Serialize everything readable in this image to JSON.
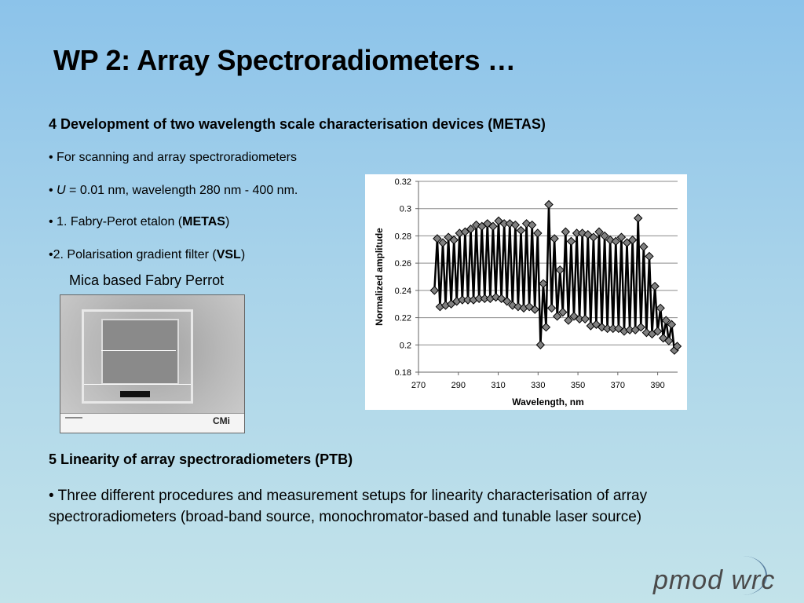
{
  "slide": {
    "title": "WP 2: Array Spectroradiometers …",
    "section4_heading": "4 Development of two wavelength scale characterisation devices (METAS)",
    "bullets": [
      "• For scanning and array spectroradiometers",
      "• U = 0.01 nm, wavelength 280 nm - 400 nm.",
      "• 1. Fabry-Perot etalon (METAS)",
      "•2. Polarisation  gradient  filter (VSL)"
    ],
    "bullet2_parts": {
      "pre": "• ",
      "italic": "U",
      "post": " = 0.01 nm, wavelength 280 nm - 400 nm."
    },
    "bullet3_parts": {
      "pre": "• 1. Fabry-Perot etalon (",
      "bold": "METAS",
      "post": ")"
    },
    "bullet4_parts": {
      "pre": "•2. Polarisation  gradient  filter (",
      "bold": "VSL",
      "post": ")"
    },
    "image_caption": "Mica based Fabry Perrot",
    "image_logo": "CMi",
    "section5_heading": "5 Linearity of array spectroradiometers  (PTB)",
    "section5_text": "• Three different procedures and measurement setups for linearity characterisation of array spectroradiometers (broad-band source, monochromator-based and tunable laser source)",
    "logo_text": "pmod wrc",
    "colors": {
      "marker_fill": "#808080",
      "line": "#000000",
      "background_top": "#8cc3ea",
      "background_bottom": "#c3e3ea"
    }
  },
  "chart_data": {
    "type": "line",
    "xlabel": "Wavelength, nm",
    "ylabel": "Normalized amplitude",
    "xlim": [
      270,
      400
    ],
    "ylim": [
      0.18,
      0.32
    ],
    "xticks": [
      270,
      290,
      310,
      330,
      350,
      370,
      390
    ],
    "yticks": [
      0.18,
      0.2,
      0.22,
      0.24,
      0.26,
      0.28,
      0.3,
      0.32
    ],
    "grid": "horizontal",
    "marker": "diamond",
    "series": [
      {
        "x": [
          278,
          279.4,
          280.8,
          282.2,
          283.6,
          285,
          286.4,
          287.8,
          289.2,
          290.6,
          292,
          293.4,
          294.8,
          296.2,
          297.6,
          299,
          300.4,
          301.8,
          303.2,
          304.6,
          306,
          307.4,
          308.8,
          310.2,
          311.6,
          313,
          314.4,
          315.8,
          317.2,
          318.6,
          320,
          321.4,
          322.8,
          324.2,
          325.6,
          327,
          328.4,
          329.8,
          331.2,
          332.6,
          334,
          335.4,
          336.8,
          338.2,
          339.6,
          341,
          342.4,
          343.8,
          345.2,
          346.6,
          348,
          349.4,
          350.8,
          352.2,
          353.6,
          355,
          356.4,
          357.8,
          359.2,
          360.6,
          362,
          363.4,
          364.8,
          366.2,
          367.6,
          369,
          370.4,
          371.8,
          373.2,
          374.6,
          376,
          377.4,
          378.8,
          380.2,
          381.6,
          383,
          384.4,
          385.8,
          387.2,
          388.6,
          390,
          391.4,
          392.8,
          394.2,
          395.6,
          397,
          398.4,
          399.8
        ],
        "y": [
          0.24,
          0.278,
          0.228,
          0.275,
          0.229,
          0.279,
          0.23,
          0.277,
          0.232,
          0.282,
          0.233,
          0.283,
          0.233,
          0.285,
          0.233,
          0.288,
          0.234,
          0.287,
          0.234,
          0.289,
          0.234,
          0.287,
          0.235,
          0.291,
          0.234,
          0.289,
          0.232,
          0.289,
          0.229,
          0.288,
          0.228,
          0.284,
          0.227,
          0.289,
          0.228,
          0.288,
          0.226,
          0.282,
          0.2,
          0.245,
          0.213,
          0.303,
          0.227,
          0.278,
          0.221,
          0.255,
          0.224,
          0.283,
          0.218,
          0.276,
          0.221,
          0.282,
          0.219,
          0.282,
          0.219,
          0.281,
          0.214,
          0.279,
          0.215,
          0.283,
          0.213,
          0.28,
          0.212,
          0.277,
          0.212,
          0.276,
          0.212,
          0.279,
          0.21,
          0.275,
          0.211,
          0.277,
          0.211,
          0.293,
          0.213,
          0.272,
          0.209,
          0.265,
          0.208,
          0.243,
          0.21,
          0.227,
          0.205,
          0.218,
          0.203,
          0.215,
          0.196,
          0.199
        ]
      }
    ]
  }
}
